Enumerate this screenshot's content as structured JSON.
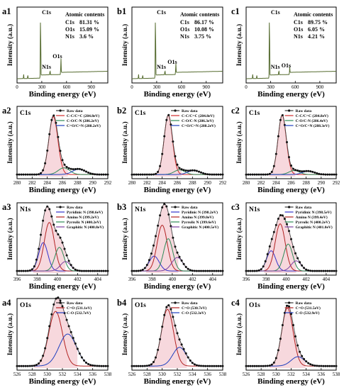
{
  "figure": {
    "chart_data": [
      {
        "id": "a1",
        "panel_label": "a1",
        "type": "line",
        "kind": "survey",
        "xlabel": "Binding energy (eV)",
        "ylabel": "Intensity (a.u.)",
        "xlim": [
          0,
          1100
        ],
        "xticks": [
          0,
          300,
          600,
          900
        ],
        "line_color": "#556b2f",
        "peaks": [
          {
            "label": "C1s",
            "x": 285,
            "height": 1.0
          },
          {
            "label": "N1s",
            "x": 400,
            "height": 0.07
          },
          {
            "label": "O1s",
            "x": 532,
            "height": 0.22
          }
        ],
        "table_title": "Atomic contents",
        "rows": [
          {
            "element": "C1s",
            "value": "81.31 %"
          },
          {
            "element": "O1s",
            "value": "15.09 %"
          },
          {
            "element": "N1s",
            "value": "3.6 %"
          }
        ]
      },
      {
        "id": "b1",
        "panel_label": "b1",
        "type": "line",
        "kind": "survey",
        "xlabel": "Binding energy (eV)",
        "ylabel": "Intensity (a.u.)",
        "xlim": [
          0,
          1100
        ],
        "xticks": [
          0,
          300,
          600,
          900
        ],
        "line_color": "#556b2f",
        "peaks": [
          {
            "label": "C1s",
            "x": 285,
            "height": 1.0
          },
          {
            "label": "N1s",
            "x": 400,
            "height": 0.07
          },
          {
            "label": "O1s",
            "x": 532,
            "height": 0.14
          }
        ],
        "table_title": "Atomic contents",
        "rows": [
          {
            "element": "C1s",
            "value": "86.17 %"
          },
          {
            "element": "O1s",
            "value": "10.08 %"
          },
          {
            "element": "N1s",
            "value": "3.75 %"
          }
        ]
      },
      {
        "id": "c1",
        "panel_label": "c1",
        "type": "line",
        "kind": "survey",
        "xlabel": "Binding energy (eV)",
        "ylabel": "Intensity (a.u.)",
        "xlim": [
          0,
          1100
        ],
        "xticks": [
          0,
          300,
          600,
          900
        ],
        "line_color": "#556b2f",
        "peaks": [
          {
            "label": "C1s",
            "x": 285,
            "height": 1.0
          },
          {
            "label": "N1s",
            "x": 400,
            "height": 0.07
          },
          {
            "label": "O1s",
            "x": 532,
            "height": 0.09
          }
        ],
        "table_title": "Atomic contents",
        "rows": [
          {
            "element": "C1s",
            "value": "89.75 %"
          },
          {
            "element": "O1s",
            "value": "6.05 %"
          },
          {
            "element": "N1s",
            "value": "4.21 %"
          }
        ]
      },
      {
        "id": "a2",
        "panel_label": "a2",
        "region_label": "C1s",
        "type": "line",
        "kind": "fit",
        "xlabel": "Binding energy (eV)",
        "ylabel": "Intensity (a.u.)",
        "xlim": [
          280,
          292
        ],
        "xticks": [
          280,
          282,
          284,
          286,
          288,
          290,
          292
        ],
        "raw_label": "Raw data",
        "components": [
          {
            "name": "C-C/C=C (284.8eV)",
            "color": "#d22b2b",
            "center": 284.8,
            "amp": 0.86,
            "sigma": 0.6
          },
          {
            "name": "C-O/C-N (286.2eV)",
            "color": "#2e8b57",
            "center": 286.2,
            "amp": 0.1,
            "sigma": 0.75
          },
          {
            "name": "C=O/C=N (288.2eV)",
            "color": "#1f3fbf",
            "center": 288.2,
            "amp": 0.08,
            "sigma": 0.85
          }
        ]
      },
      {
        "id": "b2",
        "panel_label": "b2",
        "region_label": "C1s",
        "type": "line",
        "kind": "fit",
        "xlabel": "Binding energy (eV)",
        "ylabel": "Intensity (a.u.)",
        "xlim": [
          280,
          292
        ],
        "xticks": [
          280,
          282,
          284,
          286,
          288,
          290,
          292
        ],
        "raw_label": "Raw data",
        "components": [
          {
            "name": "C-C/C=C (284.8eV)",
            "color": "#d22b2b",
            "center": 284.8,
            "amp": 0.88,
            "sigma": 0.55
          },
          {
            "name": "C-O/C-N (286.3eV)",
            "color": "#2e8b57",
            "center": 286.3,
            "amp": 0.07,
            "sigma": 0.7
          },
          {
            "name": "C=O/C=N (288.2eV)",
            "color": "#1f3fbf",
            "center": 288.2,
            "amp": 0.06,
            "sigma": 0.8
          }
        ]
      },
      {
        "id": "c2",
        "panel_label": "c2",
        "region_label": "C1s",
        "type": "line",
        "kind": "fit",
        "xlabel": "Binding energy (eV)",
        "ylabel": "Intensity (a.u.)",
        "xlim": [
          280,
          292
        ],
        "xticks": [
          280,
          282,
          284,
          286,
          288,
          290,
          292
        ],
        "raw_label": "Raw data",
        "components": [
          {
            "name": "C-C/C=C (284.8eV)",
            "color": "#d22b2b",
            "center": 284.8,
            "amp": 0.88,
            "sigma": 0.55
          },
          {
            "name": "C-O/C-N (286.4eV)",
            "color": "#2e8b57",
            "center": 286.4,
            "amp": 0.06,
            "sigma": 0.7
          },
          {
            "name": "C=O/C=N (288.3eV)",
            "color": "#1f3fbf",
            "center": 288.3,
            "amp": 0.05,
            "sigma": 0.8
          }
        ]
      },
      {
        "id": "a3",
        "panel_label": "a3",
        "region_label": "N1s",
        "type": "line",
        "kind": "fit",
        "xlabel": "Binding energy (eV)",
        "ylabel": "Intensity (a.u.)",
        "xlim": [
          396,
          405
        ],
        "xticks": [
          396,
          398,
          400,
          402,
          404
        ],
        "raw_label": "Raw data",
        "components": [
          {
            "name": "Pyridinic N (398.6eV)",
            "color": "#3333cc",
            "center": 398.6,
            "amp": 0.42,
            "sigma": 0.45
          },
          {
            "name": "Amino N (399.2eV)",
            "color": "#b22222",
            "center": 399.2,
            "amp": 0.72,
            "sigma": 0.5
          },
          {
            "name": "Pyrrolic N (400.2eV)",
            "color": "#2e8b57",
            "center": 400.2,
            "amp": 0.35,
            "sigma": 0.45
          },
          {
            "name": "Graphitic N (400.8eV)",
            "color": "#7b3fa0",
            "center": 400.8,
            "amp": 0.14,
            "sigma": 0.5
          }
        ]
      },
      {
        "id": "b3",
        "panel_label": "b3",
        "region_label": "N1s",
        "type": "line",
        "kind": "fit",
        "xlabel": "Binding energy (eV)",
        "ylabel": "Intensity (a.u.)",
        "xlim": [
          396,
          405
        ],
        "xticks": [
          396,
          398,
          400,
          402,
          404
        ],
        "raw_label": "Raw data",
        "components": [
          {
            "name": "Pyridinic N (398.2eV)",
            "color": "#3333cc",
            "center": 398.2,
            "amp": 0.22,
            "sigma": 0.5
          },
          {
            "name": "Amino N (399.0eV)",
            "color": "#b22222",
            "center": 399.0,
            "amp": 0.68,
            "sigma": 0.5
          },
          {
            "name": "Pyrrolic N (399.6eV)",
            "color": "#2e8b57",
            "center": 399.6,
            "amp": 0.48,
            "sigma": 0.45
          },
          {
            "name": "Graphitic N (400.5eV)",
            "color": "#7b3fa0",
            "center": 400.5,
            "amp": 0.2,
            "sigma": 0.55
          }
        ]
      },
      {
        "id": "c3",
        "panel_label": "c3",
        "region_label": "N1s",
        "type": "line",
        "kind": "fit",
        "xlabel": "Binding energy (eV)",
        "ylabel": "Intensity (a.u.)",
        "xlim": [
          396,
          405
        ],
        "xticks": [
          396,
          398,
          400,
          402,
          404
        ],
        "raw_label": "Raw data",
        "components": [
          {
            "name": "Pyridinic N (398.5eV)",
            "color": "#3333cc",
            "center": 398.5,
            "amp": 0.3,
            "sigma": 0.45
          },
          {
            "name": "Amino N (399.4eV)",
            "color": "#b22222",
            "center": 399.4,
            "amp": 0.7,
            "sigma": 0.5
          },
          {
            "name": "Pyrrolic N (400.2eV)",
            "color": "#2e8b57",
            "center": 400.2,
            "amp": 0.4,
            "sigma": 0.45
          },
          {
            "name": "Graphitic N (401.0eV)",
            "color": "#7b3fa0",
            "center": 401.0,
            "amp": 0.15,
            "sigma": 0.5
          }
        ]
      },
      {
        "id": "a4",
        "panel_label": "a4",
        "region_label": "O1s",
        "type": "line",
        "kind": "fit",
        "xlabel": "Binding energy (eV)",
        "ylabel": "Intensity (a.u.)",
        "xlim": [
          526,
          538
        ],
        "xticks": [
          526,
          528,
          530,
          532,
          534,
          536,
          538
        ],
        "raw_label": "Raw data",
        "components": [
          {
            "name": "C=O (531.1eV)",
            "color": "#b22222",
            "center": 531.1,
            "amp": 0.82,
            "sigma": 0.9
          },
          {
            "name": "C-O (532.7eV)",
            "color": "#1f3fbf",
            "center": 532.7,
            "amp": 0.48,
            "sigma": 1.15
          }
        ]
      },
      {
        "id": "b4",
        "panel_label": "b4",
        "region_label": "O1s",
        "type": "line",
        "kind": "fit",
        "xlabel": "Binding energy (eV)",
        "ylabel": "Intensity (a.u.)",
        "xlim": [
          526,
          538
        ],
        "xticks": [
          526,
          528,
          530,
          532,
          534,
          536,
          538
        ],
        "raw_label": "Raw data",
        "components": [
          {
            "name": "C=O (530.7eV)",
            "color": "#b22222",
            "center": 530.7,
            "amp": 0.85,
            "sigma": 0.8
          },
          {
            "name": "C-O (532.3eV)",
            "color": "#1f3fbf",
            "center": 532.3,
            "amp": 0.28,
            "sigma": 0.9
          }
        ]
      },
      {
        "id": "c4",
        "panel_label": "c4",
        "region_label": "O1s",
        "type": "line",
        "kind": "fit",
        "xlabel": "Binding energy (eV)",
        "ylabel": "Intensity (a.u.)",
        "xlim": [
          526,
          538
        ],
        "xticks": [
          526,
          528,
          530,
          532,
          534,
          536,
          538
        ],
        "raw_label": "Raw data",
        "components": [
          {
            "name": "C=O (531.5eV)",
            "color": "#b22222",
            "center": 531.5,
            "amp": 0.87,
            "sigma": 0.75
          },
          {
            "name": "C-O (532.9eV)",
            "color": "#1f3fbf",
            "center": 532.9,
            "amp": 0.14,
            "sigma": 0.9
          }
        ]
      }
    ]
  }
}
